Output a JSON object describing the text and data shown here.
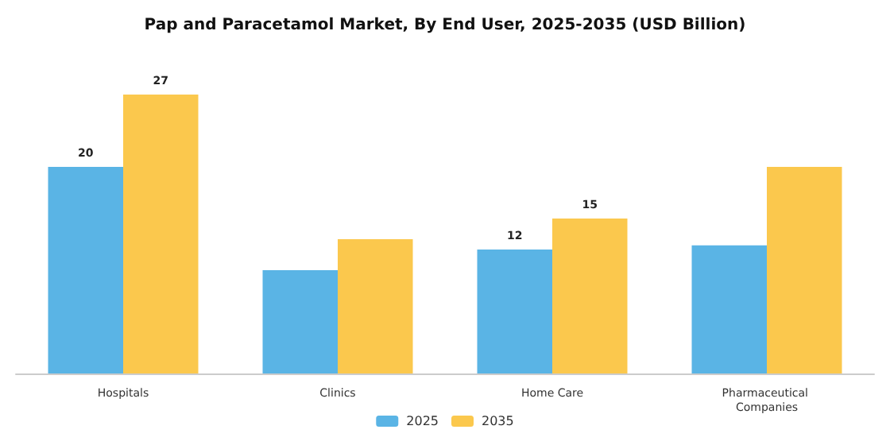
{
  "chart_data": {
    "type": "bar",
    "title": "Pap and Paracetamol Market, By End User, 2025-2035 (USD Billion)",
    "categories": [
      "Hospitals",
      "Clinics",
      "Home Care",
      "Pharmaceutical Companies"
    ],
    "series": [
      {
        "name": "2025",
        "color": "#5ab4e5",
        "values": [
          20,
          10,
          12,
          12.4
        ],
        "value_labels": [
          "20",
          null,
          "12",
          null
        ]
      },
      {
        "name": "2035",
        "color": "#fbc84d",
        "values": [
          27,
          13,
          15,
          20
        ],
        "value_labels": [
          "27",
          null,
          "15",
          null
        ]
      }
    ],
    "legend": "bottom"
  }
}
